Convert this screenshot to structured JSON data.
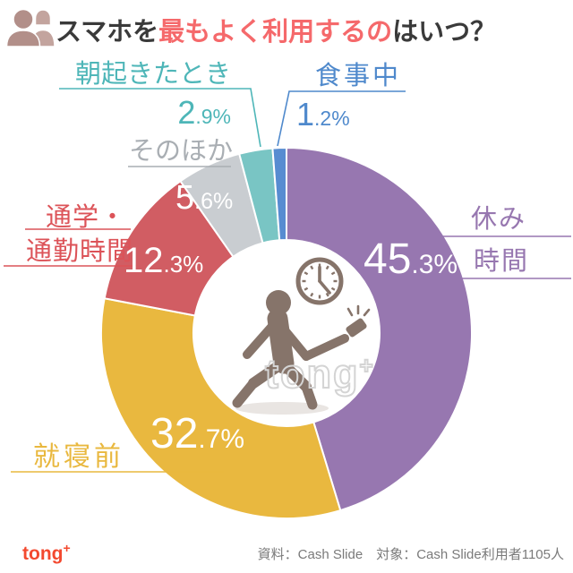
{
  "header": {
    "title_prefix": "スマホを",
    "title_highlight": "最もよく利用するの",
    "title_suffix": "はいつ？",
    "highlight_color": "#f5696b",
    "title_color": "#3a3a3a",
    "icon": "people-icon"
  },
  "chart_data": {
    "type": "pie",
    "donut": true,
    "title": "スマホを最もよく利用するのはいつ？",
    "unit": "%",
    "start_angle_deg": 0,
    "direction": "clockwise",
    "segments": [
      {
        "label": "休み時間",
        "label_lines": [
          "休み",
          "時間"
        ],
        "value": 45.3,
        "color": "#9777b0",
        "text_color": "#9777b0",
        "value_position": "on-slice"
      },
      {
        "label": "就寝前",
        "label_lines": [
          "就寝前"
        ],
        "value": 32.7,
        "color": "#e9b83f",
        "text_color": "#e9b83f",
        "value_position": "on-slice"
      },
      {
        "label": "通学・通勤時間",
        "label_lines": [
          "通学・",
          "通勤時間"
        ],
        "value": 12.3,
        "color": "#d15d63",
        "text_color": "#dc5358",
        "value_position": "on-slice"
      },
      {
        "label": "そのほか",
        "label_lines": [
          "そのほか"
        ],
        "value": 5.6,
        "color": "#c9cdd1",
        "text_color": "#a9aeb3",
        "value_position": "on-slice"
      },
      {
        "label": "朝起きたとき",
        "label_lines": [
          "朝起きたとき"
        ],
        "value": 2.9,
        "color": "#79c5c4",
        "text_color": "#4eb6b8",
        "value_position": "outside"
      },
      {
        "label": "食事中",
        "label_lines": [
          "食事中"
        ],
        "value": 1.2,
        "color": "#578cd1",
        "text_color": "#4f89cc",
        "value_position": "outside"
      }
    ]
  },
  "center": {
    "icon": "person-walking-with-phone-and-clock-icon",
    "watermark_text": "tong",
    "watermark_plus": "+"
  },
  "footer": {
    "logo": "tong",
    "logo_plus": "+",
    "logo_color": "#f3492f",
    "source": "資料：Cash Slide　対象：Cash Slide利用者1105人"
  }
}
